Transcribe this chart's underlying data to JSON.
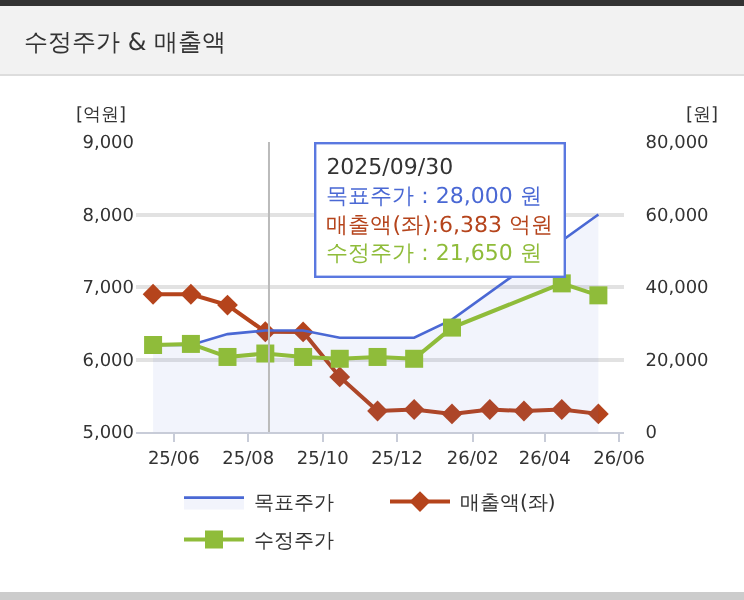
{
  "chart_data": {
    "type": "line",
    "title": "수정주가 & 매출액",
    "ylabel": "[억원]",
    "y2label": "[원]",
    "x": [
      "2025-05-15",
      "2025-06-15",
      "2025-07-15",
      "2025-08-15",
      "2025-09-15",
      "2025-10-15",
      "2025-11-15",
      "2025-12-15",
      "2026-01-15",
      "2026-02-15",
      "2026-03-15",
      "2026-04-15",
      "2026-05-15"
    ],
    "series": [
      {
        "name": "목표주가",
        "type": "area",
        "axis": "y2",
        "color": "#4a68d4",
        "marker": "none",
        "values": [
          24000,
          24000,
          27000,
          28000,
          28000,
          26000,
          26000,
          26000,
          31000,
          null,
          null,
          null,
          60000
        ]
      },
      {
        "name": "매출액(좌)",
        "color": "#b5441c",
        "marker": "diamond",
        "values": [
          6900,
          6900,
          6750,
          6383,
          6380,
          5760,
          5290,
          5310,
          5250,
          5310,
          5290,
          5310,
          5250
        ]
      },
      {
        "name": "수정주가",
        "axis": "y2",
        "color": "#8fbc3a",
        "marker": "square",
        "values": [
          24000,
          24300,
          20700,
          21650,
          20700,
          20200,
          20700,
          20200,
          28800,
          null,
          null,
          41000,
          37700
        ]
      }
    ],
    "xlim": [
      "2025-05-01",
      "2026-06-05"
    ],
    "xticks": [
      {
        "value": "2025-06-01",
        "label": "25/06"
      },
      {
        "value": "2025-08-01",
        "label": "25/08"
      },
      {
        "value": "2025-10-01",
        "label": "25/10"
      },
      {
        "value": "2025-12-01",
        "label": "25/12"
      },
      {
        "value": "2026-02-01",
        "label": "26/02"
      },
      {
        "value": "2026-04-01",
        "label": "26/04"
      },
      {
        "value": "2026-06-01",
        "label": "26/06"
      }
    ],
    "ylim": [
      5000,
      9000
    ],
    "yticks": [
      {
        "value": 5000,
        "label": "5,000"
      },
      {
        "value": 6000,
        "label": "6,000"
      },
      {
        "value": 7000,
        "label": "7,000"
      },
      {
        "value": 8000,
        "label": "8,000"
      },
      {
        "value": 9000,
        "label": "9,000"
      }
    ],
    "y2lim": [
      0,
      80000
    ],
    "y2ticks": [
      0,
      {
        "value": 20000,
        "label": "20,000"
      },
      {
        "value": 40000,
        "label": "40,000"
      },
      {
        "value": 60000,
        "label": "60,000"
      },
      {
        "value": 80000,
        "label": "80,000"
      }
    ],
    "ref_lines": [
      {
        "axis": "x",
        "value": "2025-08-18",
        "color": "#bbbbbb"
      }
    ],
    "annotations": [
      "2025/09/30",
      "목표주가 : 28,000 원",
      "매출액(좌):6,383 억원",
      "수정주가 : 21,650 원"
    ],
    "grid": "y",
    "legend": "bottom"
  }
}
